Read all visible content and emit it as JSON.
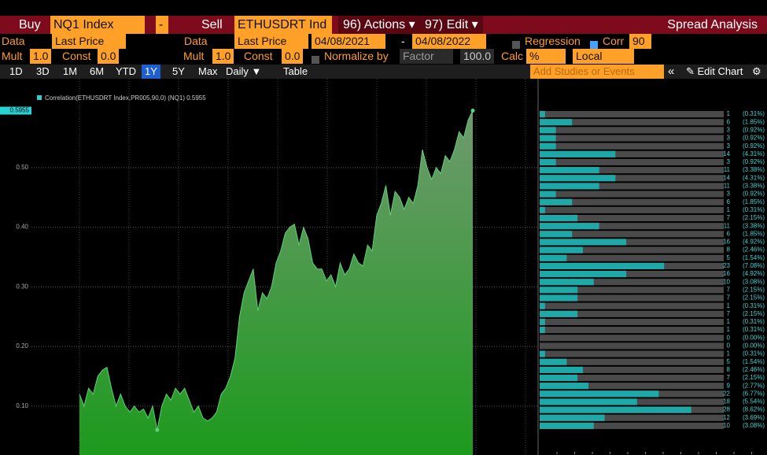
{
  "header": {
    "buy_label": "Buy",
    "buy_ticker": "NQ1 Index",
    "buy_op": "-",
    "sell_label": "Sell",
    "sell_ticker": "ETHUSDRT Ind",
    "actions": "96) Actions ▾",
    "edit": "97) Edit ▾",
    "title": "Spread Analysis"
  },
  "row2": {
    "data1": "Data",
    "field1": "Last Price",
    "data2": "Data",
    "field2": "Last Price",
    "start": "04/08/2021",
    "sep": "-",
    "end": "04/08/2022",
    "regression": "Regression",
    "corr": "Corr",
    "corr_window": "90"
  },
  "row3": {
    "mult1": "Mult",
    "mult1_val": "1.0",
    "const1": "Const",
    "const1_val": "0.0",
    "mult2": "Mult",
    "mult2_val": "1.0",
    "const2": "Const",
    "const2_val": "0.0",
    "normalize": "Normalize by",
    "factor": "Factor",
    "factor_val": "100.0",
    "calc": "Calc",
    "calc_val": "%",
    "local": "Local"
  },
  "row4": {
    "ranges": [
      "1D",
      "3D",
      "1M",
      "6M",
      "YTD",
      "1Y",
      "5Y",
      "Max"
    ],
    "selected": 5,
    "period": "Daily ▼",
    "table": "Table",
    "studies_placeholder": "Add Studies or Events",
    "collapse": "«",
    "edit_chart": "Edit Chart"
  },
  "chart_data": {
    "type": "area",
    "legend": "Correlation(ETHUSDRT Index,PR005,90,0) (NQ1)",
    "color": "#5fd07a",
    "values": [
      0.12,
      0.1,
      0.13,
      0.12,
      0.15,
      0.16,
      0.165,
      0.13,
      0.1,
      0.12,
      0.1,
      0.09,
      0.1,
      0.09,
      0.095,
      0.08,
      0.1,
      0.06,
      0.1,
      0.12,
      0.11,
      0.13,
      0.12,
      0.13,
      0.11,
      0.09,
      0.1,
      0.08,
      0.075,
      0.08,
      0.09,
      0.12,
      0.13,
      0.15,
      0.18,
      0.25,
      0.29,
      0.31,
      0.33,
      0.26,
      0.29,
      0.28,
      0.3,
      0.34,
      0.36,
      0.39,
      0.4,
      0.405,
      0.37,
      0.4,
      0.38,
      0.34,
      0.33,
      0.33,
      0.31,
      0.32,
      0.3,
      0.34,
      0.32,
      0.33,
      0.355,
      0.34,
      0.335,
      0.37,
      0.36,
      0.42,
      0.44,
      0.47,
      0.42,
      0.46,
      0.45,
      0.43,
      0.45,
      0.44,
      0.47,
      0.53,
      0.5,
      0.48,
      0.5,
      0.49,
      0.52,
      0.51,
      0.53,
      0.56,
      0.55,
      0.58,
      0.5955
    ],
    "ylim": [
      0.018,
      0.649
    ],
    "yticks": [
      {
        "value": 0.1,
        "label": "0.10"
      },
      {
        "value": 0.2,
        "label": "0.20"
      },
      {
        "value": 0.3,
        "label": "0.30"
      },
      {
        "value": 0.4,
        "label": "0.40"
      },
      {
        "value": 0.5,
        "label": "0.50"
      }
    ],
    "grid": true
  },
  "histogram": {
    "type": "bar",
    "orientation": "horizontal",
    "color": "#1fa8a8",
    "xlim": [
      0,
      42
    ],
    "counts": [
      1,
      6,
      3,
      3,
      3,
      14,
      3,
      11,
      14,
      11,
      3,
      6,
      1,
      7,
      11,
      6,
      16,
      8,
      5,
      23,
      16,
      10,
      7,
      7,
      1,
      7,
      1,
      1,
      0,
      0,
      1,
      5,
      8,
      7,
      9,
      22,
      18,
      28,
      12,
      10
    ],
    "percents": [
      0.31,
      1.85,
      0.92,
      0.92,
      0.92,
      4.31,
      0.92,
      3.38,
      4.31,
      3.38,
      0.92,
      1.85,
      0.31,
      2.15,
      3.38,
      1.85,
      4.92,
      2.46,
      1.54,
      7.08,
      4.92,
      3.08,
      2.15,
      2.15,
      0.31,
      2.15,
      0.31,
      0.31,
      0.0,
      0.0,
      0.31,
      1.54,
      2.46,
      2.15,
      2.77,
      6.77,
      5.54,
      8.62,
      3.69,
      3.08
    ],
    "value_labels": [
      "(0.31%)",
      "(1.85%)",
      "(0.92%)",
      "(0.92%)",
      "(0.92%)",
      "(4.31%)",
      "(0.92%)",
      "(3.38%)",
      "(4.31%)",
      "(3.38%)",
      "(0.92%)",
      "(1.85%)",
      "(0.31%)",
      "(2.15%)",
      "(3.38%)",
      "(1.85%)",
      "(4.92%)",
      "(2.46%)",
      "(1.54%)",
      "(7.08%)",
      "(4.92%)",
      "(3.08%)",
      "(2.15%)",
      "(2.15%)",
      "(0.31%)",
      "(2.15%)",
      "(0.31%)",
      "(0.31%)",
      "(0.00%)",
      "(0.00%)",
      "(0.31%)",
      "(1.54%)",
      "(2.46%)",
      "(2.15%)",
      "(2.77%)",
      "(6.77%)",
      "(5.54%)",
      "(8.62%)",
      "(3.69%)",
      "(3.08%)"
    ]
  }
}
